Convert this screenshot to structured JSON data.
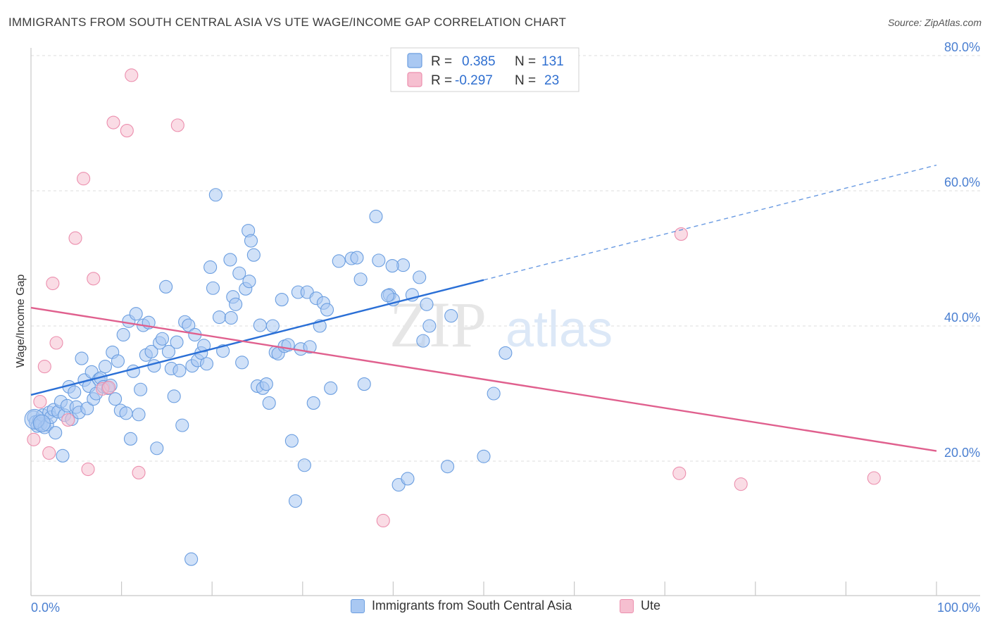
{
  "title": "IMMIGRANTS FROM SOUTH CENTRAL ASIA VS UTE WAGE/INCOME GAP CORRELATION CHART",
  "source": "Source: ZipAtlas.com",
  "watermark": {
    "zip": "ZIP",
    "atlas": "atlas"
  },
  "colors": {
    "blue_fill": "#a9c8f2",
    "blue_stroke": "#6b9ee0",
    "blue_line": "#2a6fd6",
    "pink_fill": "#f6bfd0",
    "pink_stroke": "#ec8fae",
    "pink_line": "#e0608e",
    "tick_text": "#4a7fd1",
    "grid": "#dcdcdc"
  },
  "legend": {
    "rows": [
      {
        "r_label": "R =",
        "r_value": "0.385",
        "n_label": "N =",
        "n_value": "131"
      },
      {
        "r_label": "R =",
        "r_value": "-0.297",
        "n_label": "N =",
        "n_value": "23"
      }
    ]
  },
  "chart_data": {
    "type": "scatter",
    "title": "IMMIGRANTS FROM SOUTH CENTRAL ASIA VS UTE WAGE/INCOME GAP CORRELATION CHART",
    "xlabel": "",
    "ylabel": "Wage/Income Gap",
    "xlim": [
      0,
      100
    ],
    "ylim": [
      0,
      82
    ],
    "x_tick_labels": [
      "0.0%",
      "100.0%"
    ],
    "y_ticks": [
      20,
      40,
      60,
      80
    ],
    "y_tick_labels": [
      "20.0%",
      "40.0%",
      "60.0%",
      "80.0%"
    ],
    "grid": true,
    "legend_placement": "top-center",
    "series": [
      {
        "name": "Immigrants from South Central Asia",
        "color": "#a9c8f2",
        "trend": {
          "x": [
            0,
            50
          ],
          "y": [
            29.8,
            46.8
          ],
          "dashed_to": [
            100,
            63.8
          ]
        },
        "points": [
          [
            0.3,
            26.5
          ],
          [
            0.5,
            25.8
          ],
          [
            0.7,
            25.2
          ],
          [
            0.9,
            26.0
          ],
          [
            1.1,
            25.5
          ],
          [
            1.3,
            26.8
          ],
          [
            1.5,
            25.0
          ],
          [
            1.8,
            25.4
          ],
          [
            2.0,
            27.2
          ],
          [
            2.2,
            26.5
          ],
          [
            2.5,
            27.6
          ],
          [
            2.7,
            24.2
          ],
          [
            3.0,
            27.3
          ],
          [
            3.3,
            28.8
          ],
          [
            3.5,
            20.8
          ],
          [
            3.7,
            26.8
          ],
          [
            4.0,
            28.2
          ],
          [
            4.2,
            31.0
          ],
          [
            4.5,
            26.2
          ],
          [
            4.8,
            30.2
          ],
          [
            5.0,
            28.0
          ],
          [
            5.3,
            27.2
          ],
          [
            5.6,
            35.2
          ],
          [
            5.9,
            32.0
          ],
          [
            6.2,
            27.8
          ],
          [
            6.4,
            31.1
          ],
          [
            6.7,
            33.2
          ],
          [
            6.9,
            29.2
          ],
          [
            7.2,
            30.0
          ],
          [
            7.5,
            32.1
          ],
          [
            7.7,
            32.3
          ],
          [
            8.0,
            31.0
          ],
          [
            8.2,
            34.0
          ],
          [
            8.5,
            30.8
          ],
          [
            8.8,
            31.2
          ],
          [
            9.0,
            36.1
          ],
          [
            9.3,
            29.2
          ],
          [
            9.6,
            34.8
          ],
          [
            9.9,
            27.5
          ],
          [
            10.2,
            38.7
          ],
          [
            10.5,
            27.1
          ],
          [
            10.8,
            40.7
          ],
          [
            11.0,
            23.3
          ],
          [
            11.3,
            33.3
          ],
          [
            11.6,
            41.8
          ],
          [
            11.9,
            26.9
          ],
          [
            12.1,
            30.6
          ],
          [
            12.4,
            40.1
          ],
          [
            12.7,
            35.7
          ],
          [
            13.0,
            40.5
          ],
          [
            13.3,
            36.2
          ],
          [
            13.6,
            34.1
          ],
          [
            13.9,
            21.9
          ],
          [
            14.2,
            37.5
          ],
          [
            14.5,
            38.1
          ],
          [
            14.9,
            45.8
          ],
          [
            15.2,
            36.2
          ],
          [
            15.5,
            33.7
          ],
          [
            15.8,
            29.6
          ],
          [
            16.1,
            37.6
          ],
          [
            16.4,
            33.4
          ],
          [
            16.7,
            25.3
          ],
          [
            17.0,
            40.6
          ],
          [
            17.4,
            40.1
          ],
          [
            17.8,
            34.1
          ],
          [
            18.1,
            38.7
          ],
          [
            18.4,
            34.9
          ],
          [
            18.8,
            36.0
          ],
          [
            19.1,
            37.1
          ],
          [
            19.4,
            34.4
          ],
          [
            19.8,
            48.7
          ],
          [
            20.1,
            45.6
          ],
          [
            20.4,
            59.4
          ],
          [
            20.8,
            41.3
          ],
          [
            21.2,
            36.3
          ],
          [
            22.0,
            49.8
          ],
          [
            22.3,
            44.3
          ],
          [
            22.6,
            43.2
          ],
          [
            23.0,
            47.8
          ],
          [
            23.3,
            34.6
          ],
          [
            23.7,
            45.5
          ],
          [
            24.0,
            54.1
          ],
          [
            24.3,
            52.6
          ],
          [
            24.6,
            50.5
          ],
          [
            25.0,
            31.1
          ],
          [
            25.3,
            40.1
          ],
          [
            25.6,
            30.8
          ],
          [
            26.0,
            31.4
          ],
          [
            26.3,
            28.6
          ],
          [
            26.7,
            40.0
          ],
          [
            27.0,
            36.1
          ],
          [
            27.3,
            35.9
          ],
          [
            27.7,
            43.9
          ],
          [
            28.0,
            37.0
          ],
          [
            28.4,
            37.2
          ],
          [
            28.8,
            23.0
          ],
          [
            29.2,
            14.1
          ],
          [
            29.5,
            45.0
          ],
          [
            29.8,
            36.6
          ],
          [
            30.2,
            19.4
          ],
          [
            30.5,
            45.0
          ],
          [
            30.8,
            36.9
          ],
          [
            31.2,
            28.6
          ],
          [
            31.5,
            44.1
          ],
          [
            31.9,
            40.0
          ],
          [
            32.3,
            43.4
          ],
          [
            32.7,
            42.4
          ],
          [
            33.1,
            30.8
          ],
          [
            34.0,
            49.6
          ],
          [
            35.4,
            50.0
          ],
          [
            36.0,
            50.1
          ],
          [
            36.4,
            46.9
          ],
          [
            36.8,
            31.4
          ],
          [
            38.1,
            56.2
          ],
          [
            38.4,
            49.7
          ],
          [
            39.6,
            44.6
          ],
          [
            40.0,
            43.9
          ],
          [
            40.6,
            16.5
          ],
          [
            41.1,
            49.0
          ],
          [
            41.6,
            17.4
          ],
          [
            42.1,
            44.6
          ],
          [
            42.9,
            47.2
          ],
          [
            43.3,
            37.8
          ],
          [
            43.7,
            43.2
          ],
          [
            39.4,
            44.5
          ],
          [
            39.9,
            48.9
          ],
          [
            44.0,
            40.0
          ],
          [
            46.0,
            19.2
          ],
          [
            46.4,
            41.5
          ],
          [
            50.0,
            20.7
          ],
          [
            51.1,
            30.0
          ],
          [
            52.4,
            36.0
          ],
          [
            17.7,
            5.5
          ],
          [
            22.1,
            41.2
          ],
          [
            24.1,
            46.6
          ]
        ]
      },
      {
        "name": "Ute",
        "color": "#f6bfd0",
        "trend": {
          "x": [
            0,
            100
          ],
          "y": [
            42.7,
            21.5
          ]
        },
        "points": [
          [
            0.3,
            23.2
          ],
          [
            1.0,
            28.8
          ],
          [
            1.5,
            34.0
          ],
          [
            2.0,
            21.2
          ],
          [
            2.4,
            46.3
          ],
          [
            2.8,
            37.5
          ],
          [
            4.1,
            26.1
          ],
          [
            4.9,
            53.0
          ],
          [
            5.8,
            61.8
          ],
          [
            6.3,
            18.8
          ],
          [
            6.9,
            47.0
          ],
          [
            7.9,
            30.7
          ],
          [
            8.6,
            30.9
          ],
          [
            9.1,
            70.1
          ],
          [
            10.6,
            68.9
          ],
          [
            11.1,
            77.1
          ],
          [
            11.9,
            18.3
          ],
          [
            16.2,
            69.7
          ],
          [
            38.9,
            11.2
          ],
          [
            71.6,
            18.2
          ],
          [
            71.8,
            53.6
          ],
          [
            78.4,
            16.6
          ],
          [
            93.1,
            17.5
          ]
        ]
      }
    ]
  },
  "bottom_legend": {
    "items": [
      {
        "label": "Immigrants from South Central Asia"
      },
      {
        "label": "Ute"
      }
    ]
  },
  "axis": {
    "x_left_label": "0.0%",
    "x_right_label": "100.0%",
    "y_title": "Wage/Income Gap"
  }
}
